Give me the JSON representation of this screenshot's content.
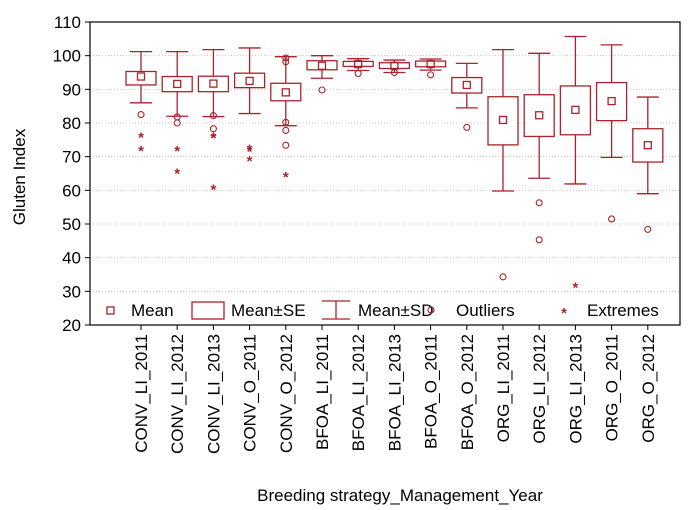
{
  "chart_data": {
    "type": "box",
    "xlabel": "Breeding strategy_Management_Year",
    "ylabel": "Gluten Index",
    "ylim": [
      20,
      110
    ],
    "yticks": [
      20,
      30,
      40,
      50,
      60,
      70,
      80,
      90,
      100,
      110
    ],
    "grid": true,
    "series_color": "#a8232b",
    "legend": {
      "placement": "bottom-inside",
      "entries": [
        "Mean",
        "Mean±SE",
        "Mean±SD",
        "Outliers",
        "Extremes"
      ]
    },
    "categories": [
      "CONV_LI_2011",
      "CONV_LI_2012",
      "CONV_LI_2013",
      "CONV_O_2011",
      "CONV_O_2012",
      "BFOA_LI_2011",
      "BFOA_LI_2012",
      "BFOA_LI_2013",
      "BFOA_O_2011",
      "BFOA_O_2012",
      "ORG_LI_2011",
      "ORG_LI_2012",
      "ORG_LI_2013",
      "ORG_O_2011",
      "ORG_O_2012"
    ],
    "boxes": [
      {
        "mean": 93.8,
        "se_low": 91.3,
        "se_high": 95.3,
        "sd_low": 86.0,
        "sd_high": 101.2,
        "outliers": [
          82.5
        ],
        "extremes": [
          76.0,
          72.0
        ]
      },
      {
        "mean": 91.6,
        "se_low": 89.3,
        "se_high": 93.8,
        "sd_low": 82.0,
        "sd_high": 101.2,
        "outliers": [
          81.8,
          80.0
        ],
        "extremes": [
          72.0,
          65.3
        ]
      },
      {
        "mean": 91.7,
        "se_low": 89.3,
        "se_high": 93.9,
        "sd_low": 81.9,
        "sd_high": 101.8,
        "outliers": [
          82.2,
          78.3
        ],
        "extremes": [
          76.0,
          75.8,
          60.5
        ]
      },
      {
        "mean": 92.5,
        "se_low": 90.5,
        "se_high": 94.8,
        "sd_low": 82.8,
        "sd_high": 102.3,
        "outliers": [],
        "extremes": [
          72.5,
          71.8,
          69.0
        ]
      },
      {
        "mean": 89.1,
        "se_low": 86.6,
        "se_high": 91.8,
        "sd_low": 79.2,
        "sd_high": 99.7,
        "outliers": [
          99.3,
          98.2,
          80.2,
          77.8,
          73.4
        ],
        "extremes": [
          64.2
        ]
      },
      {
        "mean": 97.0,
        "se_low": 95.8,
        "se_high": 98.5,
        "sd_low": 93.3,
        "sd_high": 100.0,
        "outliers": [
          89.8
        ],
        "extremes": []
      },
      {
        "mean": 97.5,
        "se_low": 96.8,
        "se_high": 98.3,
        "sd_low": 95.6,
        "sd_high": 99.1,
        "outliers": [
          94.7
        ],
        "extremes": []
      },
      {
        "mean": 97.0,
        "se_low": 96.2,
        "se_high": 97.9,
        "sd_low": 95.0,
        "sd_high": 98.7,
        "outliers": [
          95.0
        ],
        "extremes": []
      },
      {
        "mean": 97.5,
        "se_low": 96.7,
        "se_high": 98.4,
        "sd_low": 95.7,
        "sd_high": 99.0,
        "outliers": [
          94.3
        ],
        "extremes": []
      },
      {
        "mean": 91.3,
        "se_low": 88.9,
        "se_high": 93.5,
        "sd_low": 84.5,
        "sd_high": 97.7,
        "outliers": [
          78.7
        ],
        "extremes": []
      },
      {
        "mean": 80.9,
        "se_low": 73.5,
        "se_high": 87.8,
        "sd_low": 59.8,
        "sd_high": 101.8,
        "outliers": [
          34.3
        ],
        "extremes": []
      },
      {
        "mean": 82.3,
        "se_low": 76.0,
        "se_high": 88.4,
        "sd_low": 63.6,
        "sd_high": 100.7,
        "outliers": [
          56.3,
          45.3
        ],
        "extremes": []
      },
      {
        "mean": 83.9,
        "se_low": 76.5,
        "se_high": 91.0,
        "sd_low": 61.9,
        "sd_high": 105.7,
        "outliers": [],
        "extremes": [
          31.5
        ]
      },
      {
        "mean": 86.5,
        "se_low": 80.7,
        "se_high": 92.0,
        "sd_low": 69.8,
        "sd_high": 103.2,
        "outliers": [
          51.5
        ],
        "extremes": []
      },
      {
        "mean": 73.4,
        "se_low": 68.4,
        "se_high": 78.3,
        "sd_low": 59.0,
        "sd_high": 87.7,
        "outliers": [
          48.4
        ],
        "extremes": []
      }
    ]
  }
}
